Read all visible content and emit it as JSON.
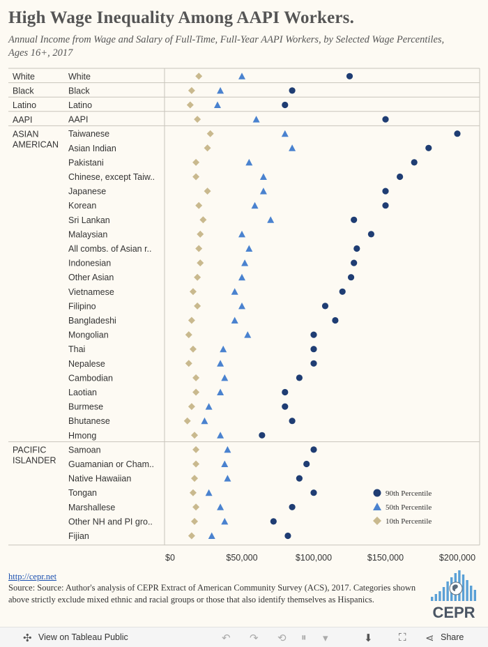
{
  "title": "High Wage Inequality Among AAPI Workers.",
  "subtitle": "Annual Income from Wage and Salary of Full-Time, Full-Year AAPI Workers, by Selected Wage Percentiles, Ages 16+, 2017",
  "footer": {
    "link": "http://cepr.net",
    "source": "Source: Source: Author's analysis of CEPR Extract of American Community Survey (ACS), 2017. Categories shown above strictly exclude mixed ethnic and racial groups or those that also identify themselves as Hispanics.",
    "logo_text": "CEPR"
  },
  "toolbar": {
    "view_label": "View on Tableau Public",
    "share_label": "Share"
  },
  "colors": {
    "p90": "#1f3d73",
    "p50": "#4a82cf",
    "p10": "#c9b98e",
    "background": "#fdfaf3",
    "logo_bars": "#5aa0d6"
  },
  "chart_data": {
    "type": "scatter",
    "x_axis": {
      "ticks": [
        "$0",
        "$50,000",
        "$100,000",
        "$150,000",
        "$200,000"
      ],
      "range": [
        0,
        210000
      ]
    },
    "legend": {
      "position": "bottom-right",
      "items": [
        {
          "label": "90th Percentile",
          "marker": "circle"
        },
        {
          "label": "50th Percentile",
          "marker": "triangle"
        },
        {
          "label": "10th Percentile",
          "marker": "diamond"
        }
      ]
    },
    "groups": [
      {
        "name": "White",
        "rows": [
          {
            "label": "White",
            "p10": 20000,
            "p50": 50000,
            "p90": 125000
          }
        ]
      },
      {
        "name": "Black",
        "rows": [
          {
            "label": "Black",
            "p10": 15000,
            "p50": 35000,
            "p90": 85000
          }
        ]
      },
      {
        "name": "Latino",
        "rows": [
          {
            "label": "Latino",
            "p10": 14000,
            "p50": 33000,
            "p90": 80000
          }
        ]
      },
      {
        "name": "AAPI",
        "rows": [
          {
            "label": "AAPI",
            "p10": 19000,
            "p50": 60000,
            "p90": 150000
          }
        ]
      },
      {
        "name": "ASIAN AMERICAN",
        "rows": [
          {
            "label": "Taiwanese",
            "p10": 28000,
            "p50": 80000,
            "p90": 200000
          },
          {
            "label": "Asian Indian",
            "p10": 26000,
            "p50": 85000,
            "p90": 180000
          },
          {
            "label": "Pakistani",
            "p10": 18000,
            "p50": 55000,
            "p90": 170000
          },
          {
            "label": "Chinese, except Taiw..",
            "p10": 18000,
            "p50": 65000,
            "p90": 160000
          },
          {
            "label": "Japanese",
            "p10": 26000,
            "p50": 65000,
            "p90": 150000
          },
          {
            "label": "Korean",
            "p10": 20000,
            "p50": 59000,
            "p90": 150000
          },
          {
            "label": "Sri Lankan",
            "p10": 23000,
            "p50": 70000,
            "p90": 128000
          },
          {
            "label": "Malaysian",
            "p10": 21000,
            "p50": 50000,
            "p90": 140000
          },
          {
            "label": "All combs. of Asian r..",
            "p10": 20000,
            "p50": 55000,
            "p90": 130000
          },
          {
            "label": "Indonesian",
            "p10": 21000,
            "p50": 52000,
            "p90": 128000
          },
          {
            "label": "Other Asian",
            "p10": 19000,
            "p50": 50000,
            "p90": 126000
          },
          {
            "label": "Vietnamese",
            "p10": 16000,
            "p50": 45000,
            "p90": 120000
          },
          {
            "label": "Filipino",
            "p10": 19000,
            "p50": 50000,
            "p90": 108000
          },
          {
            "label": "Bangladeshi",
            "p10": 15000,
            "p50": 45000,
            "p90": 115000
          },
          {
            "label": "Mongolian",
            "p10": 13000,
            "p50": 54000,
            "p90": 100000
          },
          {
            "label": "Thai",
            "p10": 16000,
            "p50": 37000,
            "p90": 100000
          },
          {
            "label": "Nepalese",
            "p10": 13000,
            "p50": 35000,
            "p90": 100000
          },
          {
            "label": "Cambodian",
            "p10": 18000,
            "p50": 38000,
            "p90": 90000
          },
          {
            "label": "Laotian",
            "p10": 18000,
            "p50": 35000,
            "p90": 80000
          },
          {
            "label": "Burmese",
            "p10": 15000,
            "p50": 27000,
            "p90": 80000
          },
          {
            "label": "Bhutanese",
            "p10": 12000,
            "p50": 24000,
            "p90": 85000
          },
          {
            "label": "Hmong",
            "p10": 17000,
            "p50": 35000,
            "p90": 64000
          }
        ]
      },
      {
        "name": "PACIFIC ISLANDER",
        "rows": [
          {
            "label": "Samoan",
            "p10": 18000,
            "p50": 40000,
            "p90": 100000
          },
          {
            "label": "Guamanian or Cham..",
            "p10": 18000,
            "p50": 38000,
            "p90": 95000
          },
          {
            "label": "Native Hawaiian",
            "p10": 17000,
            "p50": 40000,
            "p90": 90000
          },
          {
            "label": "Tongan",
            "p10": 16000,
            "p50": 27000,
            "p90": 100000
          },
          {
            "label": "Marshallese",
            "p10": 18000,
            "p50": 35000,
            "p90": 85000
          },
          {
            "label": "Other NH and PI gro..",
            "p10": 17000,
            "p50": 38000,
            "p90": 72000
          },
          {
            "label": "Fijian",
            "p10": 15000,
            "p50": 29000,
            "p90": 82000
          }
        ]
      }
    ]
  }
}
